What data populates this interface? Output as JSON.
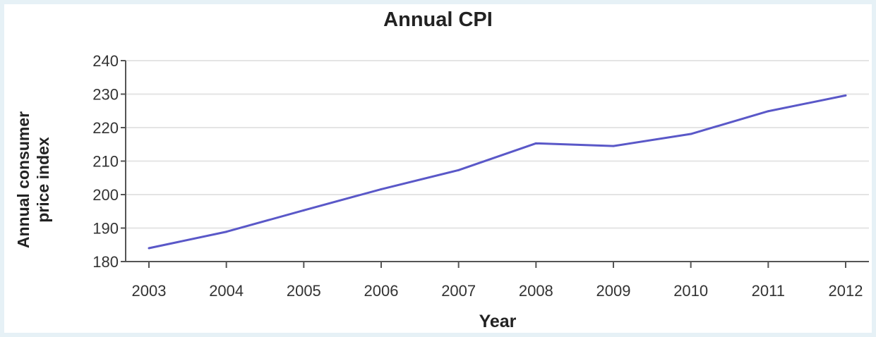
{
  "colors": {
    "background": "#e6f1f6",
    "panel": "#ffffff",
    "line": "#5a58c8",
    "grid": "#e4e4e4",
    "axis": "#555555"
  },
  "chart_data": {
    "type": "line",
    "title": "Annual CPI",
    "xlabel": "Year",
    "ylabel": "Annual consumer\nprice index",
    "x": [
      "2003",
      "2004",
      "2005",
      "2006",
      "2007",
      "2008",
      "2009",
      "2010",
      "2011",
      "2012"
    ],
    "series": [
      {
        "values": [
          184.0,
          188.9,
          195.3,
          201.6,
          207.3,
          215.3,
          214.5,
          218.1,
          224.9,
          229.6
        ]
      }
    ],
    "ylim": [
      180,
      240
    ],
    "yticks": [
      180,
      190,
      200,
      210,
      220,
      230,
      240
    ],
    "grid": true,
    "legend": "none"
  }
}
